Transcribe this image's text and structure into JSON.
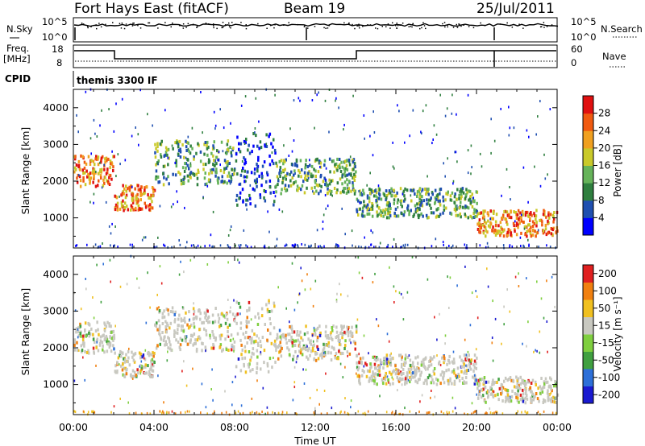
{
  "header": {
    "title_left": "Fort Hays East (fitACF)",
    "title_mid": "Beam 19",
    "title_right": "25/Jul/2011"
  },
  "top_panels": {
    "nsky_label": "N.Sky",
    "nsearch_label": "N.Search",
    "noise_ticks": [
      "10^5",
      "10^0"
    ],
    "freq_label_line1": "Freq.",
    "freq_label_line2": "[MHz]",
    "freq_ticks": [
      "18",
      "8"
    ],
    "nave_label": "Nave",
    "nave_ticks": [
      "60",
      "0"
    ],
    "cpid_label": "CPID",
    "cpid_text": "themis 3300 IF"
  },
  "chart_data": [
    {
      "type": "heatmap",
      "name": "power",
      "ylabel": "Slant Range [km]",
      "xlabel": "",
      "ylim": [
        180,
        4500
      ],
      "yticks": [
        "4000",
        "3000",
        "2000",
        "1000"
      ],
      "colorbar": {
        "label": "Power [dB]",
        "ticks": [
          "28",
          "24",
          "20",
          "16",
          "12",
          "8",
          "4"
        ],
        "colors": [
          "#0000ff",
          "#1f4fb0",
          "#2f7f3f",
          "#66b35a",
          "#c9c92a",
          "#f0a020",
          "#f05a10",
          "#e01010"
        ]
      },
      "bands": [
        {
          "t": [
            0,
            2
          ],
          "r": [
            1850,
            2700
          ],
          "level": "high"
        },
        {
          "t": [
            2,
            4
          ],
          "r": [
            1200,
            1900
          ],
          "level": "high"
        },
        {
          "t": [
            4,
            8
          ],
          "r": [
            1900,
            3100
          ],
          "level": "mid"
        },
        {
          "t": [
            8,
            10
          ],
          "r": [
            1300,
            3300
          ],
          "level": "low"
        },
        {
          "t": [
            10,
            14
          ],
          "r": [
            1650,
            2600
          ],
          "level": "mid"
        },
        {
          "t": [
            14,
            20
          ],
          "r": [
            1000,
            1800
          ],
          "level": "mid"
        },
        {
          "t": [
            20,
            24
          ],
          "r": [
            500,
            1200
          ],
          "level": "high"
        }
      ]
    },
    {
      "type": "heatmap",
      "name": "velocity",
      "ylabel": "Slant Range [km]",
      "xlabel": "Time UT",
      "xticks": [
        "00:00",
        "04:00",
        "08:00",
        "12:00",
        "16:00",
        "20:00",
        "00:00"
      ],
      "ylim": [
        180,
        4500
      ],
      "yticks": [
        "4000",
        "3000",
        "2000",
        "1000"
      ],
      "colorbar": {
        "label": "Velocity [m s⁻¹]",
        "ticks": [
          "200",
          "100",
          "50",
          "15",
          "-15",
          "-50",
          "-100",
          "-200"
        ],
        "colors": [
          "#1a1ad0",
          "#2d6fd8",
          "#40a040",
          "#7fcf3f",
          "#c8c8c0",
          "#f0c020",
          "#f08010",
          "#e02020"
        ]
      }
    }
  ]
}
